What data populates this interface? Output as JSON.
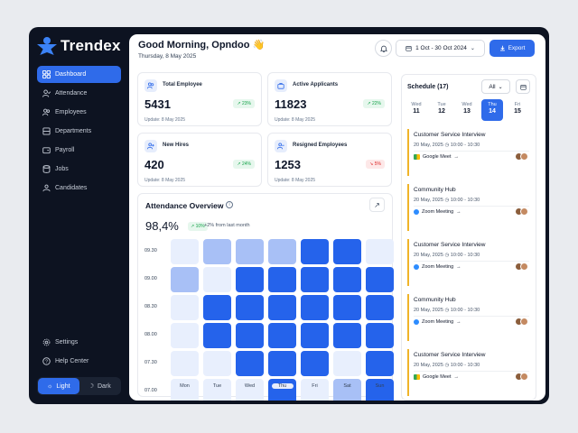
{
  "app": {
    "name": "Trendex"
  },
  "sidebar": {
    "items": [
      {
        "label": "Dashboard",
        "icon": "grid-icon",
        "active": true
      },
      {
        "label": "Attendance",
        "icon": "user-check-icon",
        "active": false
      },
      {
        "label": "Employees",
        "icon": "users-icon",
        "active": false
      },
      {
        "label": "Departments",
        "icon": "building-icon",
        "active": false
      },
      {
        "label": "Payroll",
        "icon": "wallet-icon",
        "active": false
      },
      {
        "label": "Jobs",
        "icon": "database-icon",
        "active": false
      },
      {
        "label": "Candidates",
        "icon": "user-group-icon",
        "active": false
      }
    ],
    "bottom": [
      {
        "label": "Settings",
        "icon": "gear-icon"
      },
      {
        "label": "Help Center",
        "icon": "help-icon"
      }
    ],
    "theme": {
      "light": "Light",
      "dark": "Dark",
      "selected": "Light"
    }
  },
  "header": {
    "greeting": "Good Morning, Opndoo 👋",
    "date": "Thursday, 8 May 2025",
    "date_range": "1 Oct - 30 Oct 2024",
    "export_label": "Export"
  },
  "stats": [
    {
      "title": "Total Employee",
      "value": "5431",
      "change": "23%",
      "trend": "up",
      "updated": "Update: 8 May 2025"
    },
    {
      "title": "Active Applicants",
      "value": "11823",
      "change": "22%",
      "trend": "up",
      "updated": "Update: 8 May 2025"
    },
    {
      "title": "New Hires",
      "value": "420",
      "change": "24%",
      "trend": "up",
      "updated": "Update: 8 May 2025"
    },
    {
      "title": "Resigned Employees",
      "value": "1253",
      "change": "5%",
      "trend": "down",
      "updated": "Update: 8 May 2025"
    }
  ],
  "attendance": {
    "title": "Attendance Overview",
    "percent": "98,4%",
    "change": "10%",
    "change_note": "+2% from last month",
    "times": [
      "09.30",
      "09.00",
      "08.30",
      "08.00",
      "07.30",
      "07.00"
    ],
    "days": [
      "Mon",
      "Tue",
      "Wed",
      "Thu",
      "Fri",
      "Sat",
      "Sun"
    ],
    "selected_day": "Thu",
    "levels": [
      [
        1,
        2,
        2,
        2,
        4,
        4,
        1
      ],
      [
        2,
        1,
        4,
        4,
        4,
        4,
        4
      ],
      [
        1,
        4,
        4,
        4,
        4,
        4,
        4
      ],
      [
        1,
        4,
        4,
        4,
        4,
        4,
        4
      ],
      [
        1,
        1,
        4,
        4,
        4,
        1,
        4
      ],
      [
        1,
        1,
        1,
        4,
        1,
        2,
        4
      ]
    ],
    "colors": {
      "1": "#e8effd",
      "2": "#a8c0f6",
      "4": "#2563eb"
    }
  },
  "schedule": {
    "title": "Schedule (17)",
    "filter": "All",
    "days": [
      {
        "name": "Wed",
        "num": "11",
        "active": false
      },
      {
        "name": "Tue",
        "num": "12",
        "active": false
      },
      {
        "name": "Wed",
        "num": "13",
        "active": false
      },
      {
        "name": "Thu",
        "num": "14",
        "active": true
      },
      {
        "name": "Fri",
        "num": "15",
        "active": false
      }
    ],
    "events": [
      {
        "title": "Customer Service Interview",
        "date": "20 May, 2025",
        "time": "10:00 - 10:30",
        "platform": "Google Meet",
        "platform_icon": "google-meet-icon"
      },
      {
        "title": "Community Hub",
        "date": "20 May, 2025",
        "time": "10:00 - 10:30",
        "platform": "Zoom Meeting",
        "platform_icon": "zoom-icon"
      },
      {
        "title": "Customer Service Interview",
        "date": "20 May, 2025",
        "time": "10:00 - 10:30",
        "platform": "Zoom Meeting",
        "platform_icon": "zoom-icon"
      },
      {
        "title": "Community Hub",
        "date": "20 May, 2025",
        "time": "10:00 - 10:30",
        "platform": "Zoom Meeting",
        "platform_icon": "zoom-icon"
      },
      {
        "title": "Customer Service Interview",
        "date": "20 May, 2025",
        "time": "10:00 - 10:30",
        "platform": "Google Meet",
        "platform_icon": "google-meet-icon"
      }
    ]
  },
  "theme_colors": {
    "accent": "#2f6bea",
    "sidebar_bg": "#0d1321",
    "event_border": "#f0b429"
  }
}
